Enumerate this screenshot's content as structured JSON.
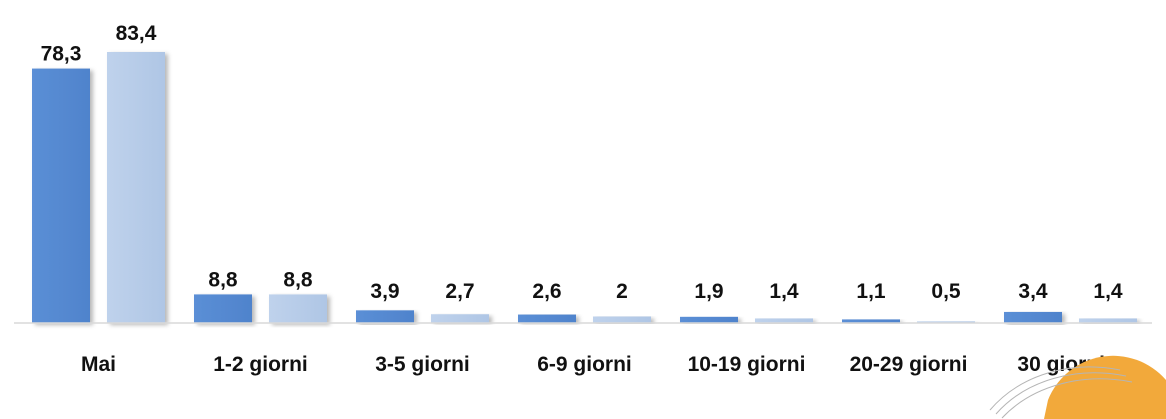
{
  "chart_data": {
    "type": "bar",
    "categories": [
      "Mai",
      "1-2 giorni",
      "3-5 giorni",
      "6-9 giorni",
      "10-19 giorni",
      "20-29 giorni",
      "30 giorni o più"
    ],
    "category_lines": [
      [
        "Mai"
      ],
      [
        "1-2 giorni"
      ],
      [
        "3-5 giorni"
      ],
      [
        "6-9 giorni"
      ],
      [
        "10-19 giorni"
      ],
      [
        "20-29 giorni"
      ],
      [
        "30 giorni o",
        "più"
      ]
    ],
    "series": [
      {
        "values": [
          78.3,
          8.8,
          3.9,
          2.6,
          1.9,
          1.1,
          3.4
        ],
        "labels": [
          "78,3",
          "8,8",
          "3,9",
          "2,6",
          "1,9",
          "1,1",
          "3,4"
        ],
        "color": "#5B8FD6"
      },
      {
        "values": [
          83.4,
          8.8,
          2.7,
          2.0,
          1.4,
          0.5,
          1.4
        ],
        "labels": [
          "83,4",
          "8,8",
          "2,7",
          "2",
          "1,4",
          "0,5",
          "1,4"
        ],
        "color": "#B8CDE8"
      }
    ],
    "ylim": [
      0,
      83.4
    ],
    "grid": false,
    "legend": "none",
    "axis_color": "#D9D9D9"
  }
}
